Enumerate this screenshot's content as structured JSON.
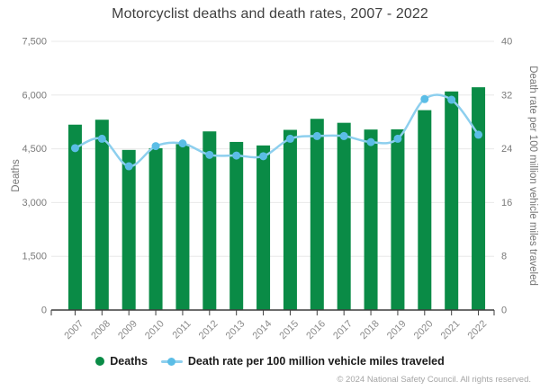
{
  "title": "Motorcyclist deaths and death rates, 2007 - 2022",
  "chart_data": {
    "type": "bar+line",
    "categories": [
      "2007",
      "2008",
      "2009",
      "2010",
      "2011",
      "2012",
      "2013",
      "2014",
      "2015",
      "2016",
      "2017",
      "2018",
      "2019",
      "2020",
      "2021",
      "2022"
    ],
    "series": [
      {
        "name": "Deaths",
        "type": "bar",
        "axis": "left",
        "values": [
          5174,
          5312,
          4469,
          4518,
          4630,
          4986,
          4692,
          4594,
          5029,
          5337,
          5226,
          5038,
          5044,
          5579,
          6101,
          6218
        ]
      },
      {
        "name": "Death rate per 100 million vehicle miles traveled",
        "type": "line",
        "axis": "right",
        "values": [
          24.1,
          25.5,
          21.4,
          24.4,
          24.8,
          23.1,
          23.0,
          22.9,
          25.5,
          25.9,
          25.9,
          25.0,
          25.5,
          31.4,
          31.3,
          26.1
        ]
      }
    ],
    "left_axis": {
      "label": "Deaths",
      "tick_labels": [
        "0",
        "1,500",
        "3,000",
        "4,500",
        "6,000",
        "7,500"
      ],
      "min": 0,
      "max": 7500
    },
    "right_axis": {
      "label": "Death rate per 100 million vehicle miles traveled",
      "tick_labels": [
        "0",
        "8",
        "16",
        "24",
        "32",
        "40"
      ],
      "min": 0,
      "max": 40
    },
    "grid": true,
    "legend_position": "bottom"
  },
  "legend": {
    "items": [
      {
        "label": "Deaths",
        "marker": "circle-icon"
      },
      {
        "label": "Death rate per 100 million vehicle miles traveled",
        "marker": "line-dot-icon"
      }
    ]
  },
  "footer": {
    "credit": "© 2024 National Safety Council. All rights reserved."
  },
  "colors": {
    "bar": "#0a8b46",
    "line": "#8dcfee",
    "marker": "#5bbde6",
    "grid": "#e8e8e8",
    "axis_line": "#3d3d3d",
    "tick_text": "#7a7a7a",
    "year_text": "#8a8a8a",
    "axis_title_text": "#757575",
    "title_text": "#3f3f3f"
  }
}
